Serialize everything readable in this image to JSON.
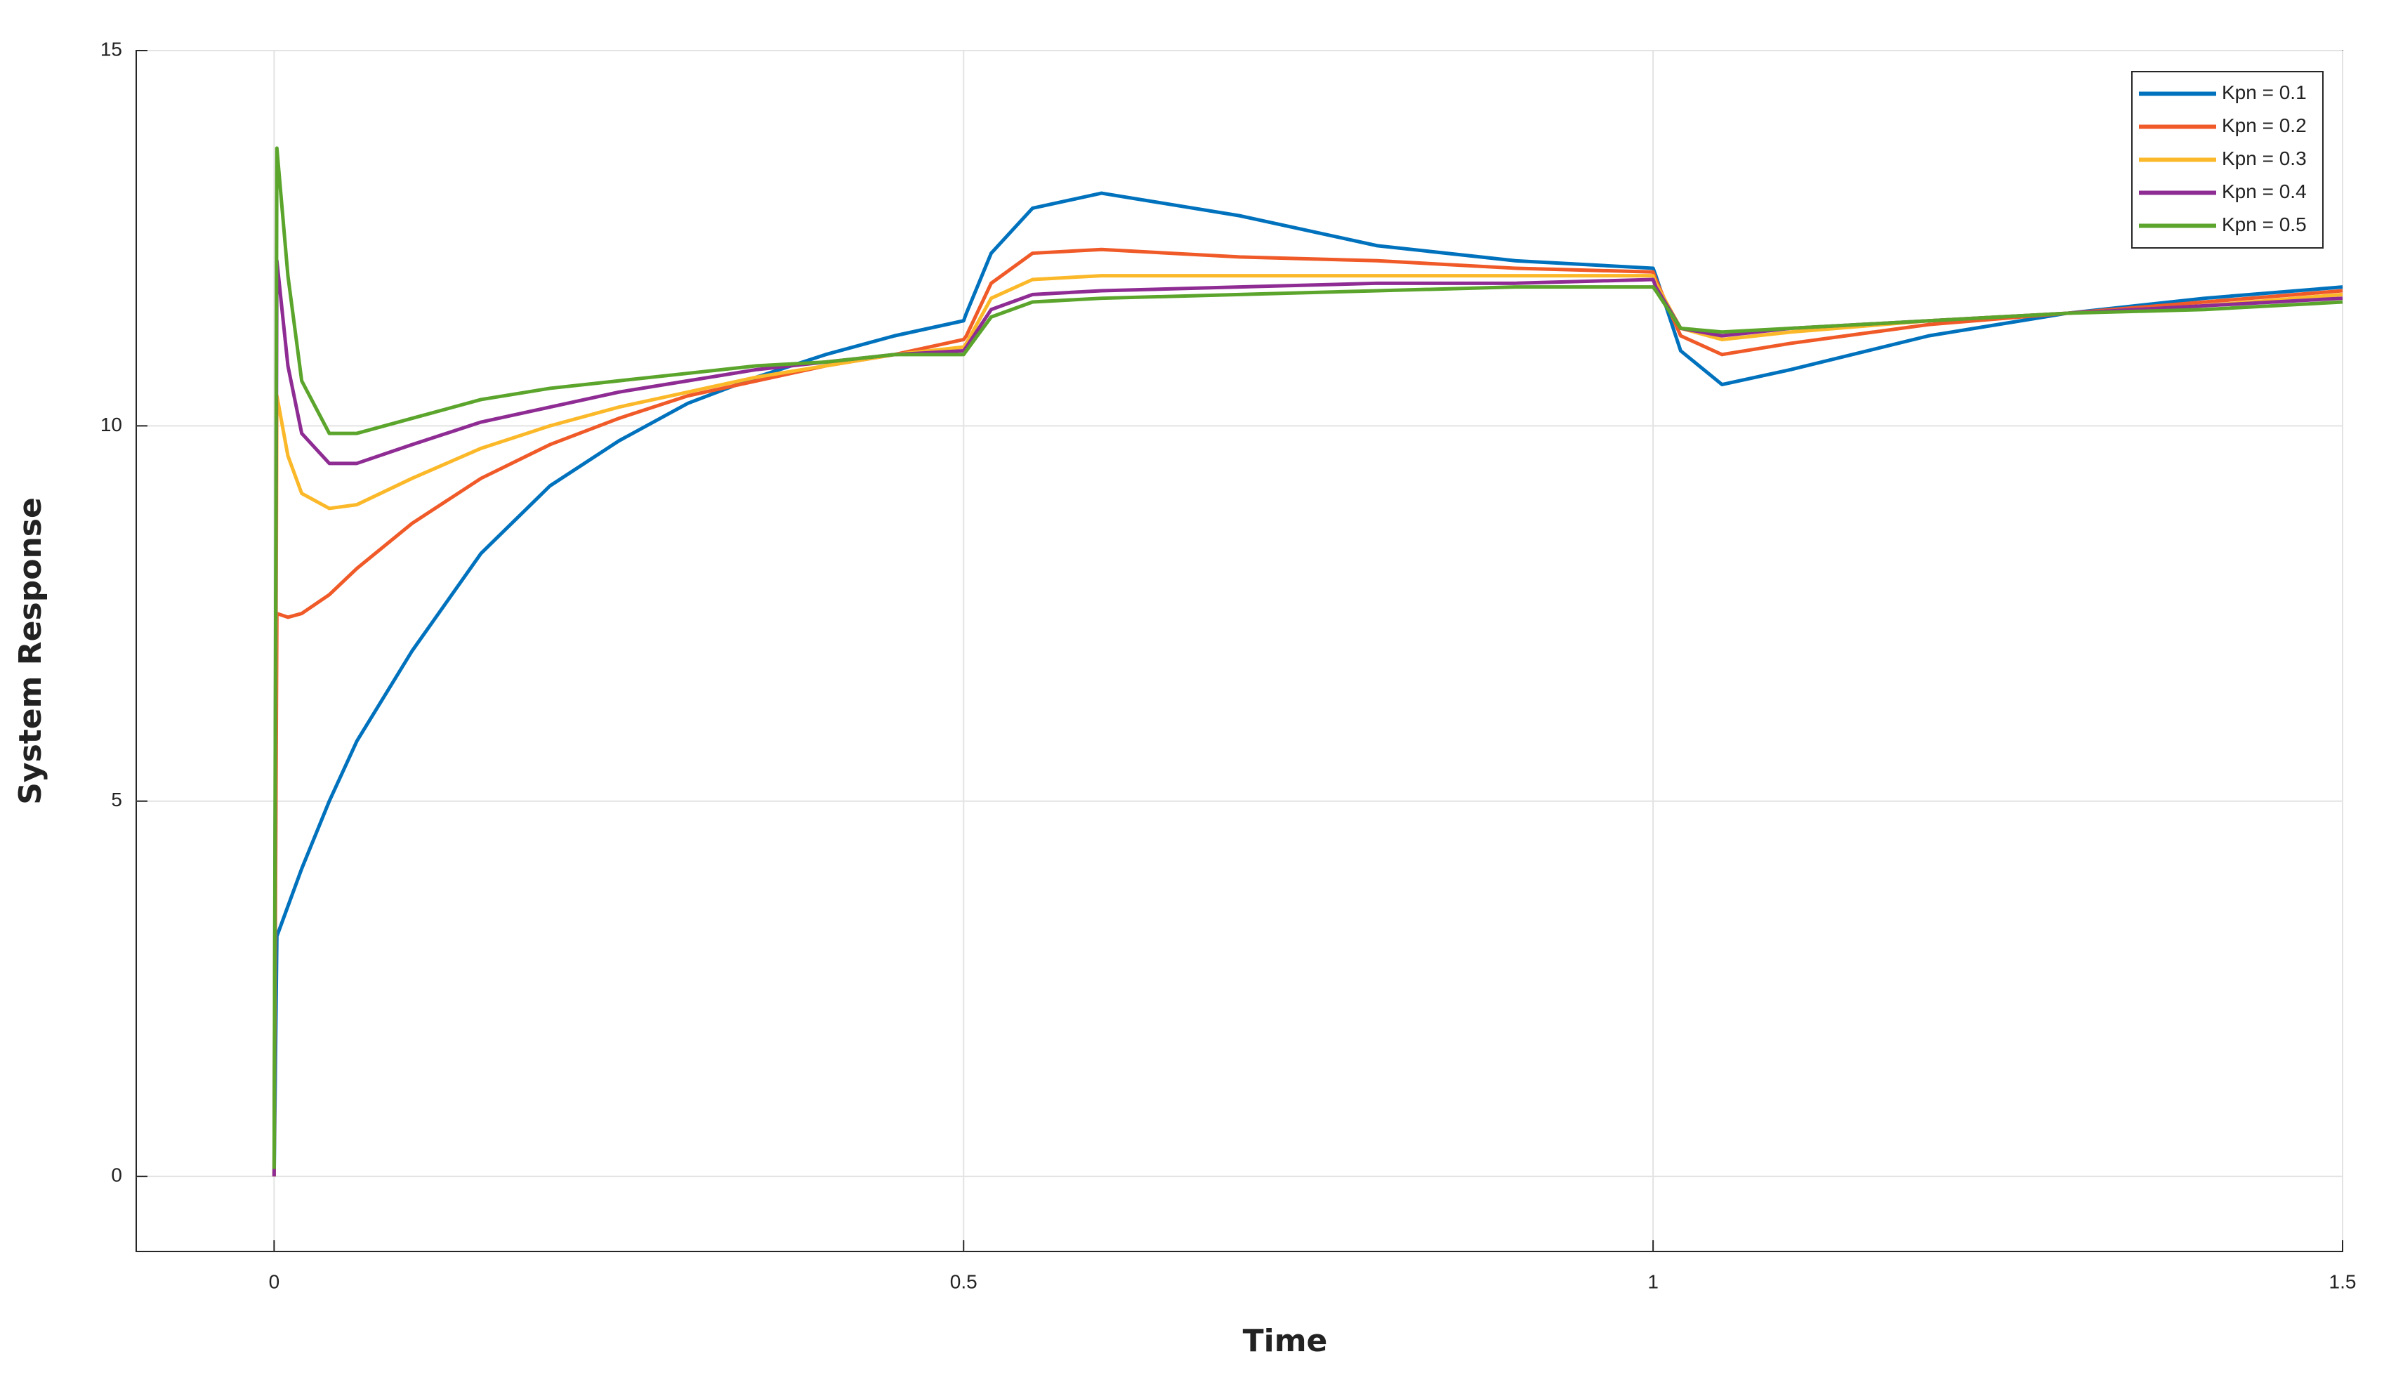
{
  "chart_data": {
    "type": "line",
    "xlabel": "Time",
    "ylabel": "System Response",
    "x": [
      0,
      0.002,
      0.01,
      0.02,
      0.04,
      0.06,
      0.1,
      0.15,
      0.2,
      0.25,
      0.3,
      0.35,
      0.4,
      0.45,
      0.5,
      0.502,
      0.52,
      0.55,
      0.6,
      0.7,
      0.8,
      0.9,
      1.0,
      1.002,
      1.02,
      1.05,
      1.1,
      1.2,
      1.3,
      1.4,
      1.5
    ],
    "series": [
      {
        "name": "Kpn = 0.1",
        "color": "#0072bd",
        "values": [
          0,
          3.2,
          3.6,
          4.1,
          5.0,
          5.8,
          7.0,
          8.3,
          9.2,
          9.8,
          10.3,
          10.65,
          10.95,
          11.2,
          11.4,
          11.5,
          12.3,
          12.9,
          13.1,
          12.8,
          12.4,
          12.2,
          12.1,
          12.0,
          11.0,
          10.55,
          10.75,
          11.2,
          11.5,
          11.7,
          11.85
        ]
      },
      {
        "name": "Kpn = 0.2",
        "color": "#f05a28",
        "values": [
          0,
          7.5,
          7.45,
          7.5,
          7.75,
          8.1,
          8.7,
          9.3,
          9.75,
          10.1,
          10.4,
          10.6,
          10.8,
          10.95,
          11.15,
          11.2,
          11.9,
          12.3,
          12.35,
          12.25,
          12.2,
          12.1,
          12.05,
          11.95,
          11.2,
          10.95,
          11.1,
          11.35,
          11.5,
          11.65,
          11.8
        ]
      },
      {
        "name": "Kpn = 0.3",
        "color": "#fbb829",
        "values": [
          0,
          10.4,
          9.6,
          9.1,
          8.9,
          8.95,
          9.3,
          9.7,
          10.0,
          10.25,
          10.45,
          10.65,
          10.8,
          10.95,
          11.05,
          11.1,
          11.7,
          11.95,
          12.0,
          12.0,
          12.0,
          12.0,
          12.0,
          11.9,
          11.3,
          11.15,
          11.25,
          11.4,
          11.5,
          11.6,
          11.75
        ]
      },
      {
        "name": "Kpn = 0.4",
        "color": "#8e2c94",
        "values": [
          0,
          12.2,
          10.8,
          9.9,
          9.5,
          9.5,
          9.75,
          10.05,
          10.25,
          10.45,
          10.6,
          10.75,
          10.85,
          10.95,
          11.0,
          11.05,
          11.55,
          11.75,
          11.8,
          11.85,
          11.9,
          11.9,
          11.95,
          11.85,
          11.3,
          11.2,
          11.3,
          11.4,
          11.5,
          11.6,
          11.7
        ]
      },
      {
        "name": "Kpn = 0.5",
        "color": "#5ba52c",
        "values": [
          0.1,
          13.7,
          12.0,
          10.6,
          9.9,
          9.9,
          10.1,
          10.35,
          10.5,
          10.6,
          10.7,
          10.8,
          10.85,
          10.95,
          10.95,
          11.0,
          11.45,
          11.65,
          11.7,
          11.75,
          11.8,
          11.85,
          11.85,
          11.8,
          11.3,
          11.25,
          11.3,
          11.4,
          11.5,
          11.55,
          11.65
        ]
      }
    ],
    "xlim": [
      -0.1,
      1.5
    ],
    "ylim": [
      -1,
      15
    ],
    "xticks": [
      0,
      0.5,
      1,
      1.5
    ],
    "yticks": [
      0,
      5,
      10,
      15
    ],
    "grid": true,
    "legend": "upper right"
  }
}
